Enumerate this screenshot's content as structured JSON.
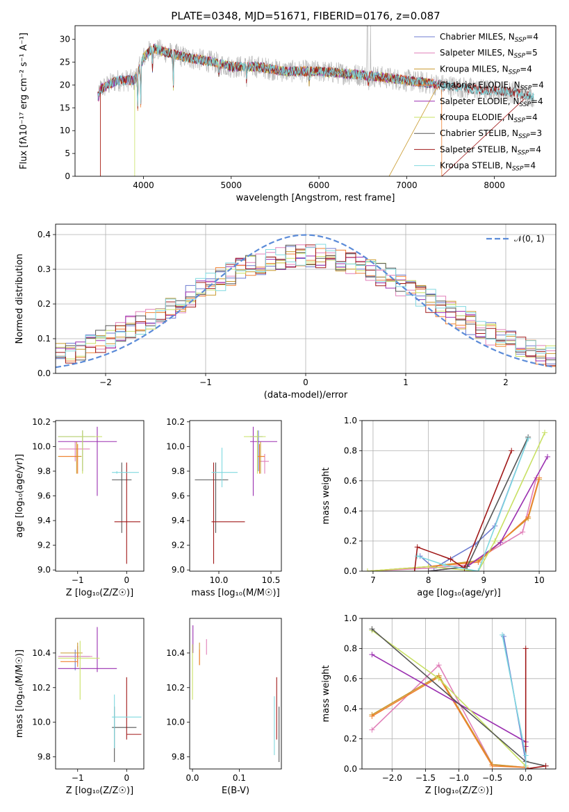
{
  "figure": {
    "title": "PLATE=0348, MJD=51671, FIBERID=0176, z=0.087"
  },
  "chart_data": [
    {
      "id": "spectrum",
      "type": "line",
      "xlabel": "wavelength [Angstrom, rest frame]",
      "ylabel": "Flux [fλ10⁻¹⁷ erg cm⁻² s⁻¹ A⁻¹]",
      "xlim": [
        3220,
        8700
      ],
      "ylim": [
        0,
        33
      ],
      "xticks": [
        "4000",
        "5000",
        "6000",
        "7000",
        "8000"
      ],
      "yticks": [
        "0",
        "5",
        "10",
        "15",
        "20",
        "25",
        "30"
      ],
      "legend_position": "top-right",
      "observed_color": "#bbbbbb",
      "series": [
        {
          "name": "Chabrier MILES, N",
          "sub": "SSP",
          "suffix": "=4",
          "color": "#6c7bd0"
        },
        {
          "name": "Salpeter MILES, N",
          "sub": "SSP",
          "suffix": "=5",
          "color": "#e07fb8"
        },
        {
          "name": "Kroupa MILES, N",
          "sub": "SSP",
          "suffix": "=4",
          "color": "#c99a2e"
        },
        {
          "name": "Chabrier ELODIE, N",
          "sub": "SSP",
          "suffix": "=4",
          "color": "#f08030"
        },
        {
          "name": "Salpeter ELODIE, N",
          "sub": "SSP",
          "suffix": "=4",
          "color": "#9a2fb0"
        },
        {
          "name": "Kroupa ELODIE, N",
          "sub": "SSP",
          "suffix": "=4",
          "color": "#c8e063"
        },
        {
          "name": "Chabrier STELIB, N",
          "sub": "SSP",
          "suffix": "=3",
          "color": "#555555"
        },
        {
          "name": "Salpeter STELIB, N",
          "sub": "SSP",
          "suffix": "=4",
          "color": "#a01818"
        },
        {
          "name": "Kroupa STELIB, N",
          "sub": "SSP",
          "suffix": "=4",
          "color": "#7fd8df"
        }
      ],
      "continuum": {
        "wavelength": [
          3500,
          3700,
          3900,
          4000,
          4100,
          4300,
          4500,
          4800,
          5000,
          5300,
          5600,
          6000,
          6300,
          6600,
          7000,
          7400,
          7800,
          8200,
          8450
        ],
        "flux": [
          19,
          21,
          21,
          26,
          28,
          27,
          26,
          25,
          24,
          24,
          23,
          23,
          22.5,
          22,
          21,
          20,
          19,
          18.5,
          17.5
        ]
      }
    },
    {
      "id": "residuals",
      "type": "histogram",
      "xlabel": "(data-model)/error",
      "ylabel": "Normed distribution",
      "xlim": [
        -2.5,
        2.5
      ],
      "ylim": [
        0,
        0.43
      ],
      "xticks": [
        "−2",
        "−1",
        "0",
        "1",
        "2"
      ],
      "yticks": [
        "0.0",
        "0.1",
        "0.2",
        "0.3",
        "0.4"
      ],
      "grid": true,
      "legend_position": "top-right",
      "normal_curve": {
        "label": "𝒩(0, 1)",
        "mean": 0,
        "sigma": 1,
        "color": "#5b8bd8"
      }
    },
    {
      "id": "age_vs_Z",
      "type": "errorbar",
      "xlabel": "Z [log₁₀(Z/Z☉)]",
      "ylabel": "age  [log₁₀(age/yr)]",
      "xlim": [
        -1.45,
        0.35
      ],
      "ylim": [
        8.99,
        10.21
      ],
      "xticks": [
        "−1",
        "0"
      ],
      "yticks": [
        "9.0",
        "9.2",
        "9.4",
        "9.6",
        "9.8",
        "10.0",
        "10.2"
      ],
      "points": [
        {
          "s": 0,
          "x": -0.9,
          "y": 10.08,
          "xl": 0.5,
          "xh": 0.25,
          "yl": 0.28,
          "yh": 0.05
        },
        {
          "s": 1,
          "x": -1.05,
          "y": 9.98,
          "xl": 0.33,
          "xh": 0.3,
          "yl": 0.1,
          "yh": 0.06
        },
        {
          "s": 2,
          "x": -1.02,
          "y": 9.92,
          "xl": 0.38,
          "xh": 0.1,
          "yl": 0.14,
          "yh": 0.12
        },
        {
          "s": 3,
          "x": -1.0,
          "y": 9.92,
          "xl": 0.38,
          "xh": 0.0,
          "yl": 0.14,
          "yh": 0.1
        },
        {
          "s": 4,
          "x": -0.6,
          "y": 10.04,
          "xl": 0.8,
          "xh": 0.4,
          "yl": 0.44,
          "yh": 0.12
        },
        {
          "s": 5,
          "x": -0.9,
          "y": 10.08,
          "xl": 0.5,
          "xh": 0.4,
          "yl": 0.3,
          "yh": 0.05
        },
        {
          "s": 6,
          "x": -0.1,
          "y": 9.73,
          "xl": 0.2,
          "xh": 0.2,
          "yl": 0.43,
          "yh": 0.14
        },
        {
          "s": 7,
          "x": 0.0,
          "y": 9.39,
          "xl": 0.25,
          "xh": 0.28,
          "yl": 0.34,
          "yh": 0.48
        },
        {
          "s": 8,
          "x": -0.2,
          "y": 9.79,
          "xl": 0.1,
          "xh": 0.45,
          "yl": 0.01,
          "yh": 0.01
        }
      ]
    },
    {
      "id": "age_vs_mass",
      "type": "errorbar",
      "xlabel": "mass [log₁₀(M/M☉)]",
      "ylabel": "",
      "xlim": [
        9.72,
        10.6
      ],
      "ylim": [
        8.99,
        10.21
      ],
      "xticks": [
        "10.0",
        "10.5"
      ],
      "yticks": [
        "9.0",
        "9.2",
        "9.4",
        "9.6",
        "9.8",
        "10.0",
        "10.2"
      ],
      "points": [
        {
          "s": 0,
          "x": 10.38,
          "y": 10.08,
          "xl": 0.08,
          "xh": 0.04,
          "yl": 0.28,
          "yh": 0.05
        },
        {
          "s": 1,
          "x": 10.44,
          "y": 9.88,
          "xl": 0.05,
          "xh": 0.04,
          "yl": 0.1,
          "yh": 0.06
        },
        {
          "s": 2,
          "x": 10.4,
          "y": 9.92,
          "xl": 0.02,
          "xh": 0.04,
          "yl": 0.14,
          "yh": 0.12
        },
        {
          "s": 3,
          "x": 10.39,
          "y": 9.92,
          "xl": 0.02,
          "xh": 0.05,
          "yl": 0.14,
          "yh": 0.1
        },
        {
          "s": 4,
          "x": 10.33,
          "y": 10.04,
          "xl": 0.03,
          "xh": 0.23,
          "yl": 0.44,
          "yh": 0.12
        },
        {
          "s": 5,
          "x": 10.37,
          "y": 10.08,
          "xl": 0.13,
          "xh": 0.08,
          "yl": 0.3,
          "yh": 0.05
        },
        {
          "s": 6,
          "x": 9.97,
          "y": 9.73,
          "xl": 0.2,
          "xh": 0.12,
          "yl": 0.43,
          "yh": 0.14
        },
        {
          "s": 7,
          "x": 9.95,
          "y": 9.39,
          "xl": 0.02,
          "xh": 0.3,
          "yl": 0.34,
          "yh": 0.48
        },
        {
          "s": 8,
          "x": 10.03,
          "y": 9.79,
          "xl": 0.1,
          "xh": 0.15,
          "yl": 0.12,
          "yh": 0.2
        }
      ]
    },
    {
      "id": "mw_vs_age",
      "type": "line",
      "xlabel": "age  [log₁₀(age/yr)]",
      "ylabel": "mass weight",
      "xlim": [
        6.8,
        10.3
      ],
      "ylim": [
        0,
        1
      ],
      "xticks": [
        "7",
        "8",
        "9",
        "10"
      ],
      "yticks": [
        "0.0",
        "0.2",
        "0.4",
        "0.6",
        "0.8",
        "1.0"
      ],
      "grid": true,
      "lines": [
        {
          "s": 0,
          "x": [
            7.85,
            8.1,
            8.85,
            9.2,
            9.8
          ],
          "y": [
            0.1,
            0.02,
            0.18,
            0.3,
            0.88
          ]
        },
        {
          "s": 1,
          "x": [
            6.9,
            8.0,
            8.7,
            9.7,
            9.95
          ],
          "y": [
            0.0,
            0.02,
            0.04,
            0.26,
            0.62
          ]
        },
        {
          "s": 2,
          "x": [
            6.9,
            8.0,
            8.9,
            9.8,
            10.0
          ],
          "y": [
            0.0,
            0.03,
            0.07,
            0.35,
            0.61
          ]
        },
        {
          "s": 3,
          "x": [
            6.9,
            8.0,
            8.9,
            9.8,
            10.0
          ],
          "y": [
            0.0,
            0.03,
            0.06,
            0.36,
            0.62
          ]
        },
        {
          "s": 4,
          "x": [
            8.0,
            8.7,
            9.3,
            10.15
          ],
          "y": [
            0.0,
            0.03,
            0.19,
            0.76
          ]
        },
        {
          "s": 5,
          "x": [
            6.9,
            8.0,
            8.9,
            9.2,
            10.1
          ],
          "y": [
            0.0,
            0.03,
            0.0,
            0.2,
            0.92
          ]
        },
        {
          "s": 6,
          "x": [
            8.0,
            8.7,
            9.8
          ],
          "y": [
            0.0,
            0.03,
            0.89
          ]
        },
        {
          "s": 7,
          "x": [
            7.75,
            7.8,
            8.4,
            8.65,
            9.5
          ],
          "y": [
            0.0,
            0.16,
            0.08,
            0.02,
            0.8
          ]
        },
        {
          "s": 8,
          "x": [
            7.8,
            8.3,
            8.9,
            9.8
          ],
          "y": [
            0.1,
            0.04,
            0.0,
            0.88
          ]
        }
      ]
    },
    {
      "id": "mass_vs_Z",
      "type": "errorbar",
      "xlabel": "Z [log₁₀(Z/Z☉)]",
      "ylabel": "mass [log₁₀(M/M☉)]",
      "xlim": [
        -1.45,
        0.35
      ],
      "ylim": [
        9.73,
        10.6
      ],
      "xticks": [
        "−1",
        "0"
      ],
      "yticks": [
        "9.8",
        "10.0",
        "10.2",
        "10.4"
      ],
      "points": [
        {
          "s": 0,
          "x": -1.05,
          "y": 10.38,
          "xl": 0.33,
          "xh": 0.3,
          "yl": 0.08,
          "yh": 0.04
        },
        {
          "s": 1,
          "x": -1.0,
          "y": 10.38,
          "xl": 0.4,
          "xh": 0.3,
          "yl": 0.04,
          "yh": 0.06
        },
        {
          "s": 2,
          "x": -1.0,
          "y": 10.4,
          "xl": 0.35,
          "xh": 0.1,
          "yl": 0.03,
          "yh": 0.06
        },
        {
          "s": 3,
          "x": -1.0,
          "y": 10.35,
          "xl": 0.35,
          "xh": 0.0,
          "yl": 0.03,
          "yh": 0.05
        },
        {
          "s": 4,
          "x": -0.6,
          "y": 10.31,
          "xl": 0.8,
          "xh": 0.4,
          "yl": 0.02,
          "yh": 0.24
        },
        {
          "s": 5,
          "x": -0.95,
          "y": 10.37,
          "xl": 0.45,
          "xh": 0.4,
          "yl": 0.24,
          "yh": 0.1
        },
        {
          "s": 6,
          "x": -0.25,
          "y": 9.97,
          "xl": 0.05,
          "xh": 0.45,
          "yl": 0.2,
          "yh": 0.12
        },
        {
          "s": 7,
          "x": 0.0,
          "y": 9.93,
          "xl": 0.0,
          "xh": 0.3,
          "yl": 0.03,
          "yh": 0.33
        },
        {
          "s": 8,
          "x": -0.25,
          "y": 10.03,
          "xl": 0.05,
          "xh": 0.55,
          "yl": 0.18,
          "yh": 0.13
        }
      ]
    },
    {
      "id": "mass_vs_EBV",
      "type": "errorbar",
      "xlabel": "E(B-V)",
      "ylabel": "",
      "xlim": [
        -0.006,
        0.19
      ],
      "ylim": [
        9.73,
        10.6
      ],
      "xticks": [
        "0.0",
        "0.1"
      ],
      "yticks": [
        "9.8",
        "10.0",
        "10.2",
        "10.4"
      ],
      "points": [
        {
          "s": 1,
          "x": 0.03,
          "y": 10.43,
          "xl": 0,
          "xh": 0,
          "yl": 0.04,
          "yh": 0.05
        },
        {
          "s": 2,
          "x": 0.015,
          "y": 10.4,
          "xl": 0,
          "xh": 0,
          "yl": 0.07,
          "yh": 0.06
        },
        {
          "s": 3,
          "x": 0.015,
          "y": 10.38,
          "xl": 0,
          "xh": 0,
          "yl": 0.05,
          "yh": 0.04
        },
        {
          "s": 4,
          "x": 0.001,
          "y": 10.48,
          "xl": 0,
          "xh": 0,
          "yl": 0.08,
          "yh": 0.08
        },
        {
          "s": 5,
          "x": 0.0,
          "y": 10.3,
          "xl": 0,
          "xh": 0,
          "yl": 0.17,
          "yh": 0.15
        },
        {
          "s": 6,
          "x": 0.185,
          "y": 9.93,
          "xl": 0,
          "xh": 0,
          "yl": 0.16,
          "yh": 0.16
        },
        {
          "s": 7,
          "x": 0.18,
          "y": 10.03,
          "xl": 0,
          "xh": 0,
          "yl": 0.13,
          "yh": 0.23
        },
        {
          "s": 8,
          "x": 0.175,
          "y": 9.97,
          "xl": 0,
          "xh": 0,
          "yl": 0.16,
          "yh": 0.18
        }
      ]
    },
    {
      "id": "mw_vs_Z",
      "type": "line",
      "xlabel": "Z [log₁₀(Z/Z☉)]",
      "ylabel": "mass weight",
      "xlim": [
        -2.45,
        0.45
      ],
      "ylim": [
        0,
        1
      ],
      "xticks": [
        "−2.0",
        "−1.5",
        "−1.0",
        "−0.5",
        "0.0"
      ],
      "yticks": [
        "0.0",
        "0.2",
        "0.4",
        "0.6",
        "0.8",
        "1.0"
      ],
      "grid": true,
      "lines": [
        {
          "s": 0,
          "x": [
            -0.33,
            0.0,
            0.0
          ],
          "y": [
            0.88,
            0.05,
            0.01
          ]
        },
        {
          "s": 1,
          "x": [
            -2.3,
            -1.3,
            -0.5,
            0.0
          ],
          "y": [
            0.26,
            0.69,
            0.03,
            0.01
          ]
        },
        {
          "s": 2,
          "x": [
            -2.3,
            -1.3,
            -0.5,
            0.0
          ],
          "y": [
            0.36,
            0.62,
            0.03,
            0.01
          ]
        },
        {
          "s": 3,
          "x": [
            -2.3,
            -1.3,
            -0.5,
            0.0
          ],
          "y": [
            0.35,
            0.61,
            0.02,
            0.01
          ]
        },
        {
          "s": 4,
          "x": [
            -2.3,
            0.0,
            0.0
          ],
          "y": [
            0.76,
            0.18,
            0.15
          ]
        },
        {
          "s": 5,
          "x": [
            -2.3,
            -1.3,
            0.0
          ],
          "y": [
            0.92,
            0.6,
            0.02
          ]
        },
        {
          "s": 6,
          "x": [
            -2.3,
            0.0,
            0.3
          ],
          "y": [
            0.93,
            0.05,
            0.02
          ]
        },
        {
          "s": 7,
          "x": [
            0.0,
            0.0,
            0.3
          ],
          "y": [
            0.8,
            0.0,
            0.02
          ]
        },
        {
          "s": 8,
          "x": [
            -0.35,
            0.0,
            0.0
          ],
          "y": [
            0.89,
            0.09,
            0.0
          ]
        }
      ]
    }
  ]
}
